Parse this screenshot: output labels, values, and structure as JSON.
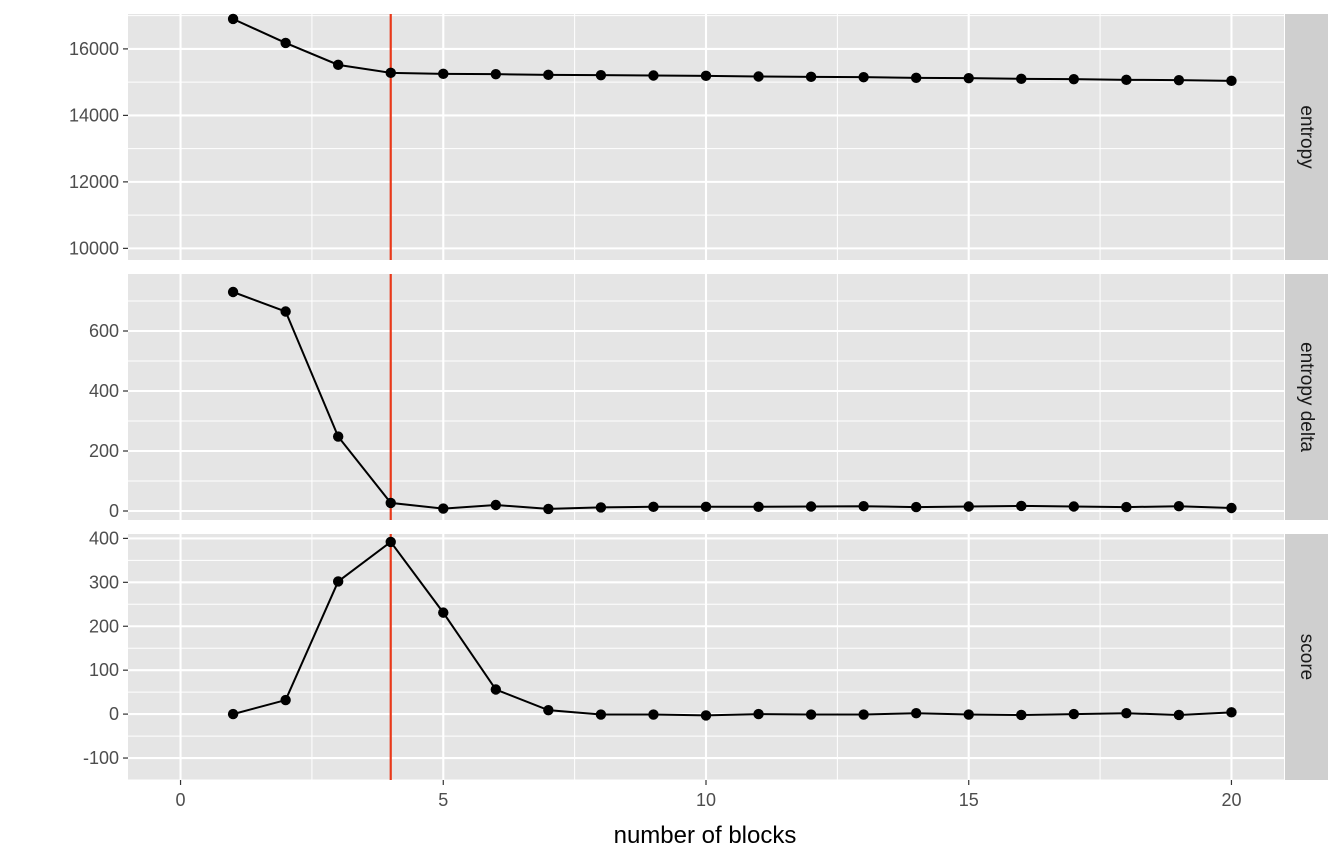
{
  "chart_data": {
    "type": "line",
    "xlabel": "number of blocks",
    "xlim": [
      -1,
      21
    ],
    "x_ticks": [
      0,
      5,
      10,
      15,
      20
    ],
    "x_tick_labels": [
      "0",
      "5",
      "10",
      "15",
      "20"
    ],
    "reference_line": {
      "x": 4,
      "color": "#e8391a"
    },
    "x": [
      1,
      2,
      3,
      4,
      5,
      6,
      7,
      8,
      9,
      10,
      11,
      12,
      13,
      14,
      15,
      16,
      17,
      18,
      19,
      20
    ],
    "facets": [
      {
        "strip": "entropy",
        "ylim": [
          9650,
          17050
        ],
        "y_ticks": [
          10000,
          12000,
          14000,
          16000
        ],
        "y_tick_labels": [
          "10000",
          "12000",
          "14000",
          "16000"
        ],
        "values": [
          16900,
          16180,
          15520,
          15280,
          15250,
          15240,
          15220,
          15210,
          15200,
          15190,
          15170,
          15160,
          15150,
          15130,
          15120,
          15100,
          15090,
          15070,
          15060,
          15040
        ]
      },
      {
        "strip": "entropy delta",
        "ylim": [
          -30,
          790
        ],
        "y_ticks": [
          0,
          200,
          400,
          600
        ],
        "y_tick_labels": [
          "0",
          "200",
          "400",
          "600"
        ],
        "values": [
          730,
          665,
          248,
          27,
          8,
          20,
          7,
          12,
          14,
          14,
          14,
          15,
          16,
          13,
          15,
          17,
          15,
          13,
          16,
          10
        ]
      },
      {
        "strip": "score",
        "ylim": [
          -150,
          410
        ],
        "y_ticks": [
          -100,
          0,
          100,
          200,
          300,
          400
        ],
        "y_tick_labels": [
          "-100",
          "0",
          "100",
          "200",
          "300",
          "400"
        ],
        "values": [
          0,
          32,
          302,
          392,
          231,
          56,
          9,
          -1,
          -1,
          -3,
          0,
          -1,
          -1,
          2,
          -1,
          -2,
          0,
          2,
          -2,
          4
        ]
      }
    ]
  }
}
